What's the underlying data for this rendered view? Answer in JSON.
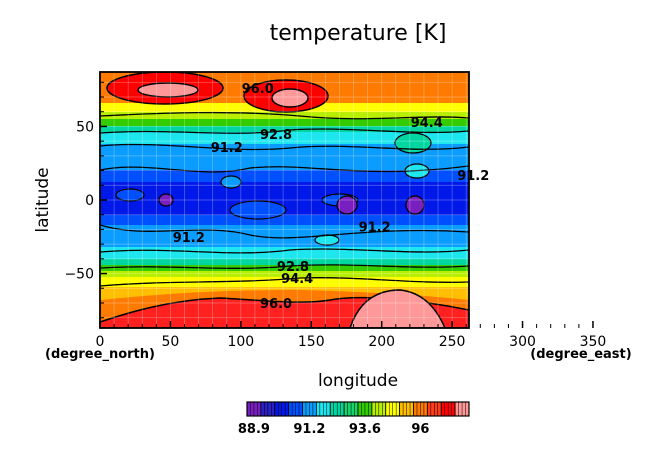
{
  "chart_data": {
    "type": "heatmap",
    "title": "temperature [K]",
    "xlabel": "longitude",
    "ylabel": "latitude",
    "x_unit": "(degree_east)",
    "y_unit": "(degree_north)",
    "xlim": [
      0,
      355
    ],
    "ylim": [
      -87,
      87
    ],
    "x_ticks": [
      "0",
      "50",
      "100",
      "150",
      "200",
      "250",
      "300",
      "350"
    ],
    "y_ticks": [
      "50",
      "0",
      "-50"
    ],
    "grid": true,
    "contour_labels": [
      {
        "text": "96.0",
        "lon": 112,
        "lat": 76
      },
      {
        "text": "94.4",
        "lon": 232,
        "lat": 53
      },
      {
        "text": "92.8",
        "lon": 125,
        "lat": 45
      },
      {
        "text": "91.2",
        "lon": 90,
        "lat": 36
      },
      {
        "text": "91.2",
        "lon": 265,
        "lat": 17
      },
      {
        "text": "91.2",
        "lon": 63,
        "lat": -25
      },
      {
        "text": "91.2",
        "lon": 195,
        "lat": -18
      },
      {
        "text": "92.8",
        "lon": 137,
        "lat": -45
      },
      {
        "text": "94.4",
        "lon": 140,
        "lat": -53
      },
      {
        "text": "96.0",
        "lon": 125,
        "lat": -70
      }
    ],
    "colorbar": {
      "colors": [
        "#7a1fbf",
        "#2a1fc8",
        "#0018e8",
        "#0050ff",
        "#0a9cff",
        "#1ee6ee",
        "#00d7a0",
        "#17d46a",
        "#33cc00",
        "#b8ee00",
        "#ffff00",
        "#ffbf00",
        "#ff7a00",
        "#ff3d1a",
        "#ff0000",
        "#ff9999"
      ],
      "tick_labels": [
        "88.9",
        "91.2",
        "93.6",
        "96"
      ],
      "tick_index": [
        0,
        4,
        8,
        12
      ]
    }
  }
}
